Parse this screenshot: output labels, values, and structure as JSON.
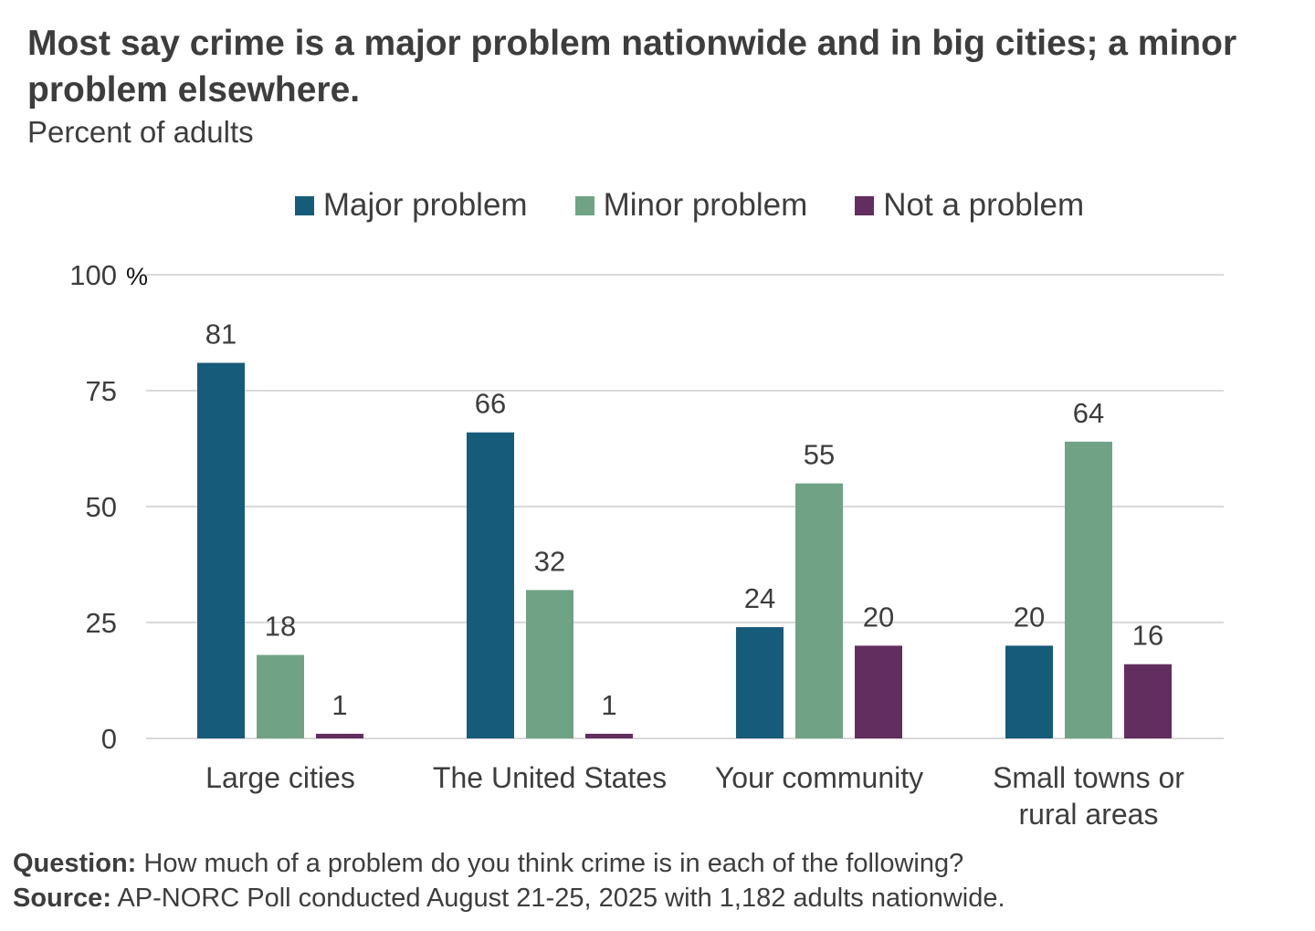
{
  "header": {
    "title": "Most say crime is a major problem nationwide and in big cities; a minor problem elsewhere.",
    "subtitle": "Percent of adults"
  },
  "colors": {
    "major": "#175b7b",
    "minor": "#70a386",
    "not": "#622e5f",
    "grid": "#d9d9d9",
    "text": "#3d3d3d"
  },
  "footer": {
    "question_label": "Question:",
    "question_text": "How much of a problem do you think crime is in each of the following?",
    "source_label": "Source:",
    "source_text": "AP-NORC Poll conducted August 21-25, 2025 with 1,182 adults nationwide."
  },
  "chart_data": {
    "type": "bar",
    "title": "Most say crime is a major problem nationwide and in big cities; a minor problem elsewhere.",
    "subtitle": "Percent of adults",
    "categories": [
      [
        "Large cities"
      ],
      [
        "The United States"
      ],
      [
        "Your community"
      ],
      [
        "Small towns or",
        "rural areas"
      ]
    ],
    "series": [
      {
        "name": "Major problem",
        "color_key": "major",
        "values": [
          81,
          66,
          24,
          20
        ]
      },
      {
        "name": "Minor problem",
        "color_key": "minor",
        "values": [
          18,
          32,
          55,
          64
        ]
      },
      {
        "name": "Not a problem",
        "color_key": "not",
        "values": [
          1,
          1,
          20,
          16
        ]
      }
    ],
    "yticks": [
      0,
      25,
      50,
      75,
      100
    ],
    "ytick_labels": [
      "0",
      "25",
      "50",
      "75",
      "100"
    ],
    "y_unit": "%",
    "ylim": [
      0,
      100
    ],
    "xlabel": "",
    "ylabel": "",
    "legend": "top-center",
    "grid": true
  }
}
